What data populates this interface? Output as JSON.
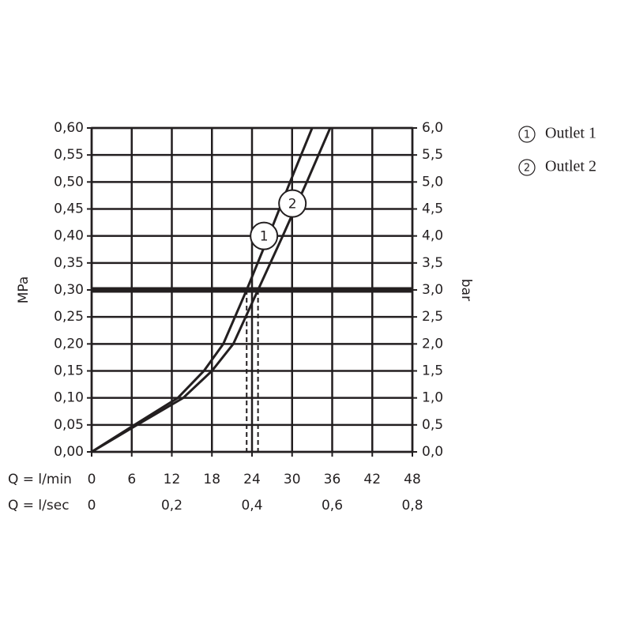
{
  "chart_data": {
    "type": "line",
    "xlabel": "Q = l/min",
    "x2label": "Q = l/sec",
    "ylabel": "MPa",
    "y2label": "bar",
    "xlim": [
      0,
      48
    ],
    "xticks": [
      0,
      6,
      12,
      18,
      24,
      30,
      36,
      42,
      48
    ],
    "x2lim": [
      0,
      0.8
    ],
    "x2ticks": [
      0,
      {
        "value": 0.2,
        "label": "0,2"
      },
      {
        "value": 0.4,
        "label": "0,4"
      },
      {
        "value": 0.6,
        "label": "0,6"
      },
      {
        "value": 0.8,
        "label": "0,8"
      }
    ],
    "ylim": [
      0,
      0.6
    ],
    "yticks": [
      {
        "value": 0,
        "label": "0,00"
      },
      {
        "value": 0.05,
        "label": "0,05"
      },
      {
        "value": 0.1,
        "label": "0,10"
      },
      {
        "value": 0.15,
        "label": "0,15"
      },
      {
        "value": 0.2,
        "label": "0,20"
      },
      {
        "value": 0.25,
        "label": "0,25"
      },
      {
        "value": 0.3,
        "label": "0,30"
      },
      {
        "value": 0.35,
        "label": "0,35"
      },
      {
        "value": 0.4,
        "label": "0,40"
      },
      {
        "value": 0.45,
        "label": "0,45"
      },
      {
        "value": 0.5,
        "label": "0,50"
      },
      {
        "value": 0.55,
        "label": "0,55"
      },
      {
        "value": 0.6,
        "label": "0,60"
      }
    ],
    "y2lim": [
      0,
      6
    ],
    "y2ticks": [
      {
        "value": 0,
        "label": "0,0"
      },
      {
        "value": 0.5,
        "label": "0,5"
      },
      {
        "value": 1,
        "label": "1,0"
      },
      {
        "value": 1.5,
        "label": "1,5"
      },
      {
        "value": 2,
        "label": "2,0"
      },
      {
        "value": 2.5,
        "label": "2,5"
      },
      {
        "value": 3,
        "label": "3,0"
      },
      {
        "value": 3.5,
        "label": "3,5"
      },
      {
        "value": 4,
        "label": "4,0"
      },
      {
        "value": 4.5,
        "label": "4,5"
      },
      {
        "value": 5,
        "label": "5,0"
      },
      {
        "value": 5.5,
        "label": "5,5"
      },
      {
        "value": 6,
        "label": "6,0"
      }
    ],
    "grid": true,
    "reference_pressure": 0.3,
    "series": [
      {
        "name": "Outlet 1",
        "marker": "1",
        "color": "#231f20",
        "x": [
          0,
          6.4,
          12.9,
          16.8,
          19.7,
          23.2,
          26.5,
          29.7,
          33
        ],
        "values": [
          0,
          0.05,
          0.1,
          0.15,
          0.2,
          0.3,
          0.4,
          0.5,
          0.6
        ],
        "flow_at_reference": 23.2
      },
      {
        "name": "Outlet 2",
        "marker": "2",
        "color": "#231f20",
        "x": [
          0,
          6.8,
          13.7,
          18,
          21.2,
          24.9,
          28.6,
          32.2,
          35.7
        ],
        "values": [
          0,
          0.05,
          0.1,
          0.15,
          0.2,
          0.3,
          0.4,
          0.5,
          0.6
        ],
        "flow_at_reference": 24.9
      }
    ]
  }
}
